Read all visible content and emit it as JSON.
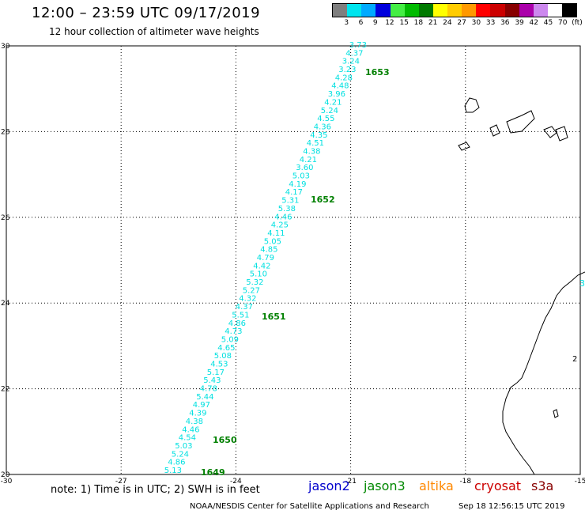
{
  "header": {
    "title": "12:00 – 23:59 UTC 09/17/2019",
    "subtitle": "12 hour collection of altimeter wave heights"
  },
  "colorbar": {
    "labels": [
      "3",
      "6",
      "9",
      "12",
      "15",
      "18",
      "21",
      "24",
      "27",
      "30",
      "33",
      "36",
      "39",
      "42",
      "45",
      "70",
      "(ft)"
    ],
    "colors": [
      "#7f7f7f",
      "#00e5ee",
      "#00aaff",
      "#0000dd",
      "#44ee44",
      "#00bb00",
      "#007a00",
      "#ffff00",
      "#ffcc00",
      "#ff9900",
      "#ff0000",
      "#cc0000",
      "#880000",
      "#aa00aa",
      "#cc88ee",
      "#ffffff",
      "#000000"
    ]
  },
  "axes": {
    "x_ticks": [
      "-30",
      "-27",
      "-24",
      "-21",
      "-18",
      "-15"
    ],
    "y_ticks": [
      "20",
      "22",
      "24",
      "26",
      "28",
      "30"
    ]
  },
  "track": {
    "color": "#00e0e0",
    "values": [
      "3.73",
      "4.37",
      "3.24",
      "3.23",
      "4.28",
      "4.48",
      "3.96",
      "4.21",
      "5.24",
      "4.55",
      "4.36",
      "4.35",
      "4.51",
      "4.38",
      "4.21",
      "3.60",
      "5.03",
      "4.19",
      "4.17",
      "5.31",
      "5.38",
      "4.46",
      "4.25",
      "4.11",
      "5.05",
      "4.85",
      "4.79",
      "4.42",
      "5.10",
      "5.32",
      "5.27",
      "4.32",
      "4.37",
      "5.51",
      "4.86",
      "4.73",
      "5.09",
      "4.65",
      "5.08",
      "4.53",
      "5.17",
      "5.43",
      "4.78",
      "5.44",
      "4.97",
      "4.39",
      "4.38",
      "4.46",
      "4.54",
      "5.03",
      "5.24",
      "4.86",
      "5.13"
    ]
  },
  "time_labels": {
    "color": "#008000",
    "items": [
      "1653",
      "1652",
      "1651",
      "1650",
      "1649"
    ]
  },
  "edge_values": [
    "3"
  ],
  "coast_labels": [
    "2"
  ],
  "footer": {
    "note": "note: 1) Time is in UTC; 2) SWH is in feet",
    "satellites": [
      {
        "name": "jason2",
        "color": "#0000cc"
      },
      {
        "name": "jason3",
        "color": "#008800"
      },
      {
        "name": "altika",
        "color": "#ff8800"
      },
      {
        "name": "cryosat",
        "color": "#cc0000"
      },
      {
        "name": "s3a",
        "color": "#880000"
      }
    ],
    "credit": "NOAA/NESDIS Center for Satellite Applications and Research",
    "timestamp": "Sep 18 12:56:15 UTC 2019"
  }
}
